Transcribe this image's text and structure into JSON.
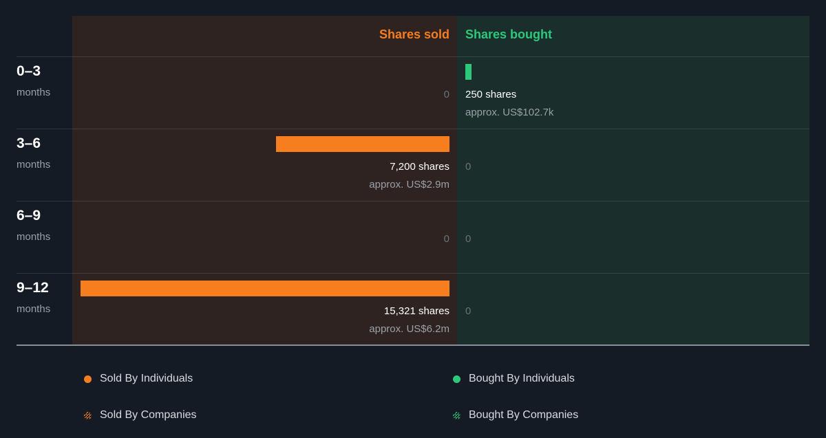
{
  "headers": {
    "sold": "Shares sold",
    "bought": "Shares bought"
  },
  "rows": [
    {
      "period": "0–3",
      "unit": "months",
      "sold_shares": 0,
      "sold_label": "0",
      "sold_approx": "",
      "bought_shares": 250,
      "bought_label": "250 shares",
      "bought_approx": "approx. US$102.7k"
    },
    {
      "period": "3–6",
      "unit": "months",
      "sold_shares": 7200,
      "sold_label": "7,200 shares",
      "sold_approx": "approx. US$2.9m",
      "bought_shares": 0,
      "bought_label": "0",
      "bought_approx": ""
    },
    {
      "period": "6–9",
      "unit": "months",
      "sold_shares": 0,
      "sold_label": "0",
      "sold_approx": "",
      "bought_shares": 0,
      "bought_label": "0",
      "bought_approx": ""
    },
    {
      "period": "9–12",
      "unit": "months",
      "sold_shares": 15321,
      "sold_label": "15,321 shares",
      "sold_approx": "approx. US$6.2m",
      "bought_shares": 0,
      "bought_label": "0",
      "bought_approx": ""
    }
  ],
  "legend": {
    "sold_individuals": "Sold By Individuals",
    "sold_companies": "Sold By Companies",
    "bought_individuals": "Bought By Individuals",
    "bought_companies": "Bought By Companies"
  },
  "colors": {
    "sold": "#f67e1e",
    "bought": "#2ec87a"
  },
  "chart_data": {
    "type": "bar",
    "categories": [
      "0–3",
      "3–6",
      "6–9",
      "9–12"
    ],
    "series": [
      {
        "name": "Shares sold",
        "values": [
          0,
          7200,
          0,
          15321
        ]
      },
      {
        "name": "Shares bought",
        "values": [
          250,
          0,
          0,
          0
        ]
      }
    ],
    "xlabel": "",
    "ylabel": ""
  }
}
